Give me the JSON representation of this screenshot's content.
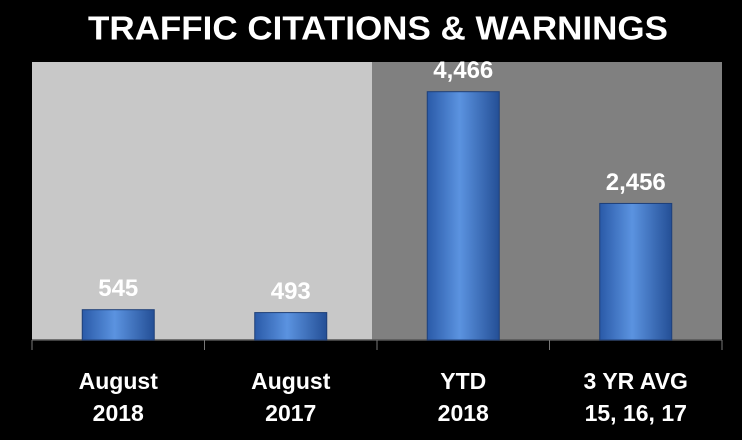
{
  "chart_data": {
    "type": "bar",
    "title": "TRAFFIC CITATIONS & WARNINGS",
    "categories": [
      "August\n2018",
      "August\n2017",
      "YTD\n2018",
      "3 YR AVG\n15, 16, 17"
    ],
    "values": [
      545,
      493,
      4466,
      2456
    ],
    "value_labels": [
      "545",
      "493",
      "4,466",
      "2,456"
    ],
    "color": "#3f74c4",
    "ylim": [
      0,
      5000
    ]
  }
}
